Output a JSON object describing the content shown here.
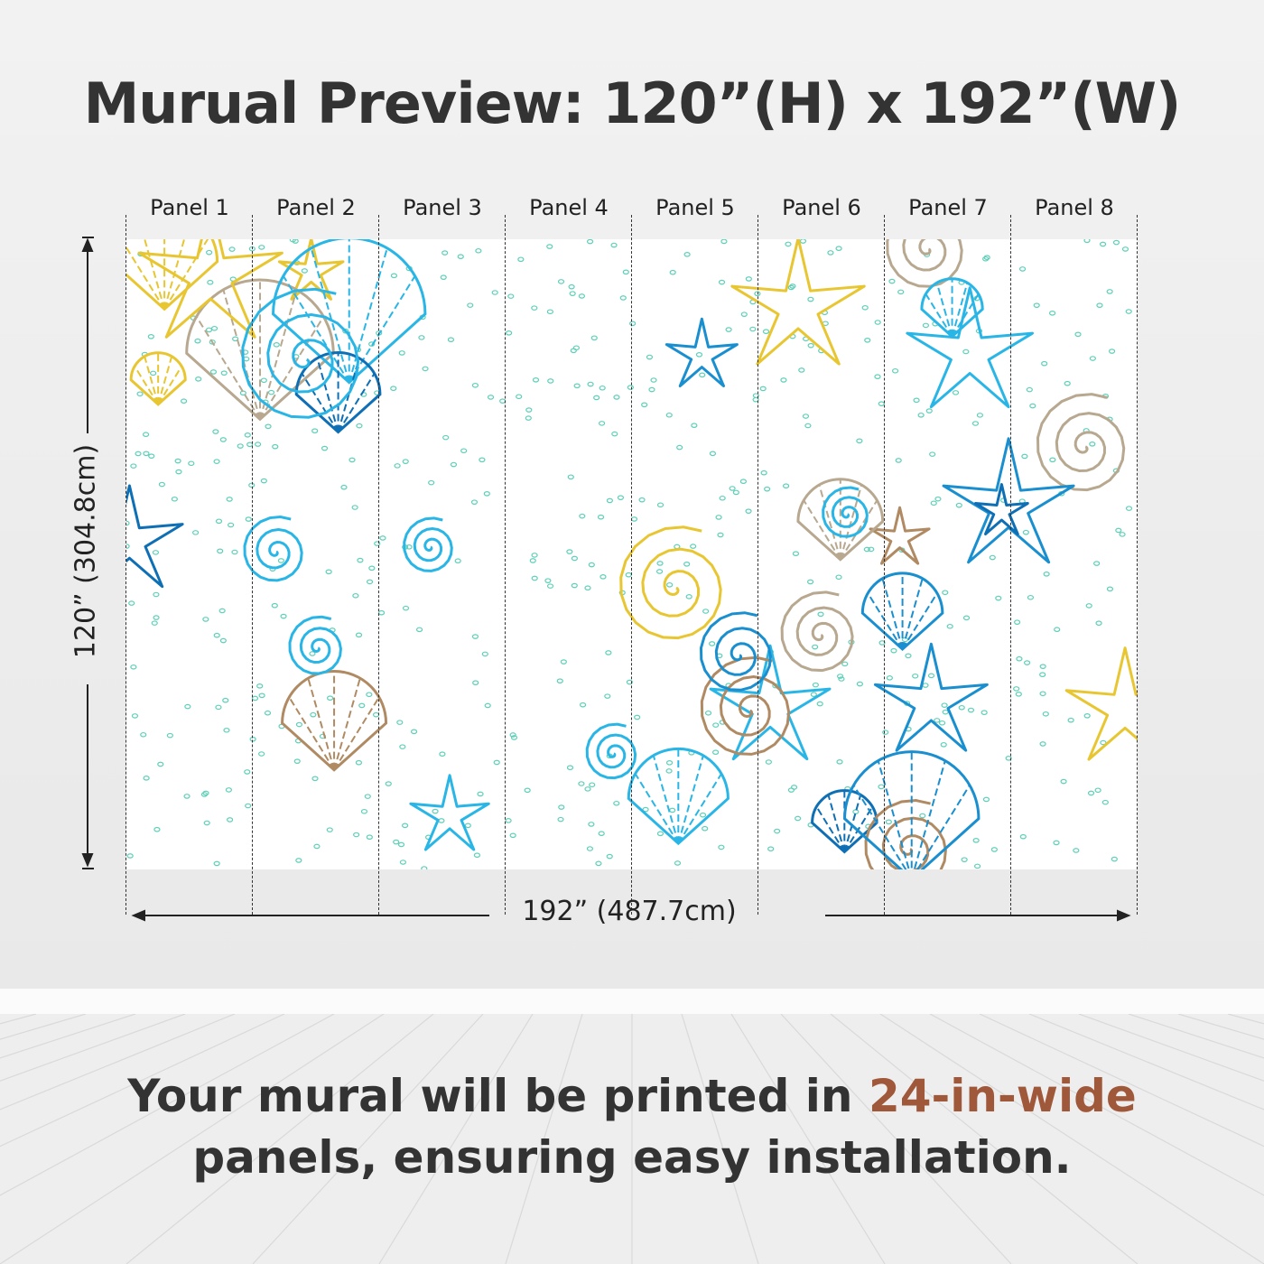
{
  "title": "Murual Preview: 120”(H) x 192”(W)",
  "panels": [
    "Panel 1",
    "Panel 2",
    "Panel 3",
    "Panel 4",
    "Panel 5",
    "Panel 6",
    "Panel 7",
    "Panel 8"
  ],
  "dimensions": {
    "height": "120” (304.8cm)",
    "width": "192” (487.7cm)"
  },
  "footer": {
    "line1_prefix": "Your mural will be printed in ",
    "line1_accent": "24-in-wide",
    "line2": "panels, ensuring easy installation."
  },
  "colors": {
    "accent": "#a0583a",
    "pattern": [
      "#1a8fd0",
      "#29b6e6",
      "#0f6fb5",
      "#b08a62",
      "#b7a88f",
      "#e8c631",
      "#5fd0b8"
    ]
  }
}
